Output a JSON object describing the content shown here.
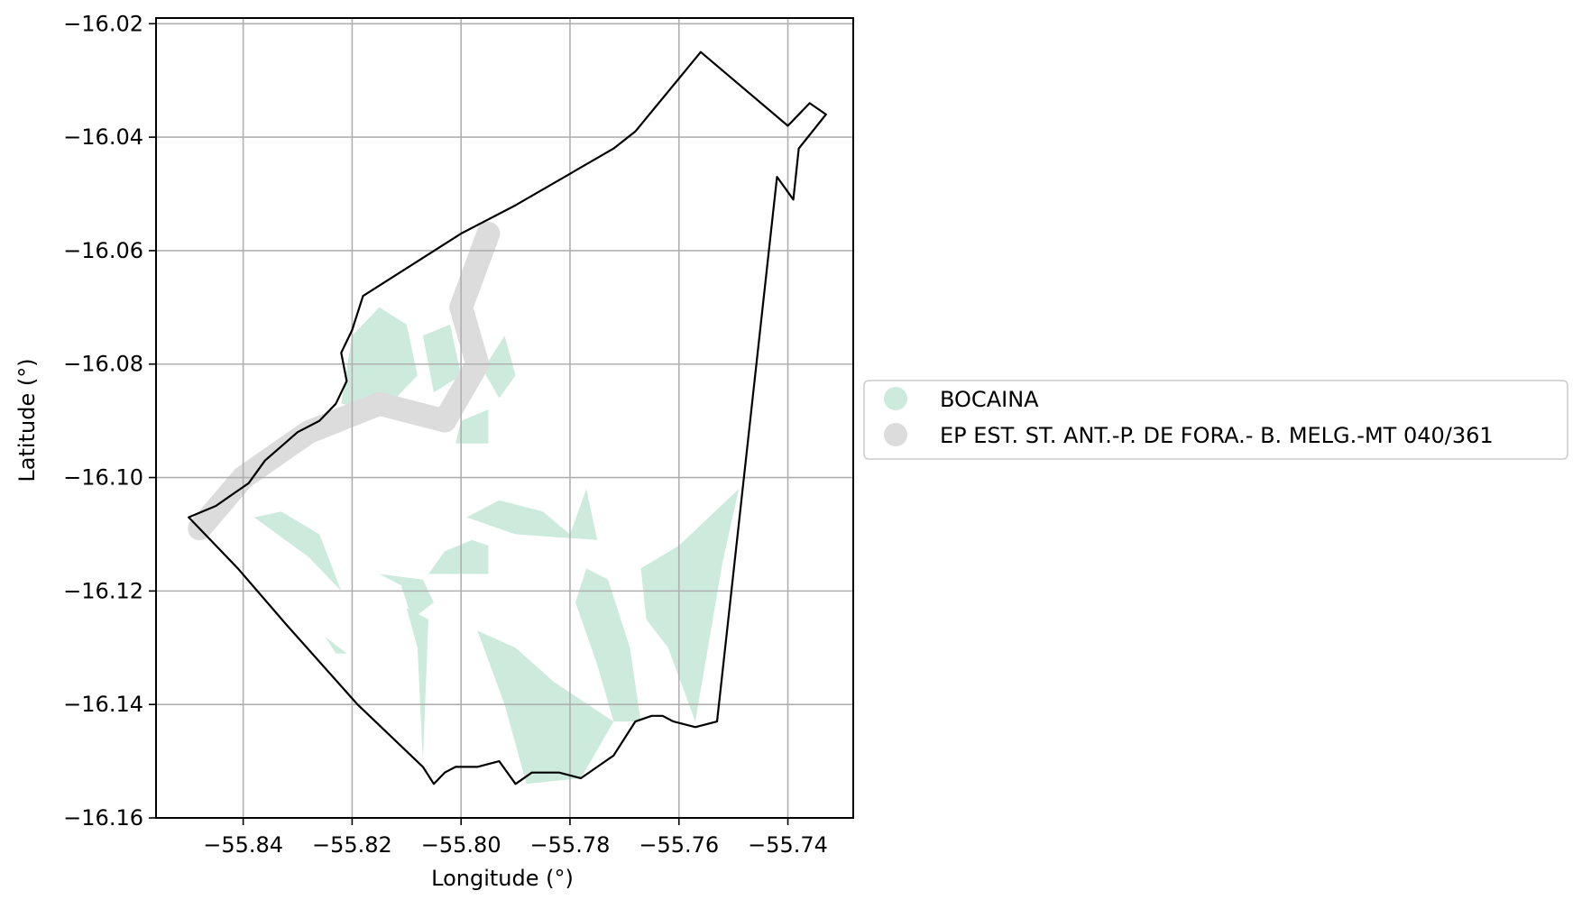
{
  "chart_data": {
    "type": "map",
    "xlabel": "Longitude (°)",
    "ylabel": "Latitude (°)",
    "xlim": [
      -55.856,
      -55.728
    ],
    "ylim": [
      -16.16,
      -16.019
    ],
    "grid": true,
    "legend_placement": "right",
    "x_ticks": [
      {
        "value": -55.84,
        "label": "−55.84"
      },
      {
        "value": -55.82,
        "label": "−55.82"
      },
      {
        "value": -55.8,
        "label": "−55.80"
      },
      {
        "value": -55.78,
        "label": "−55.78"
      },
      {
        "value": -55.76,
        "label": "−55.76"
      },
      {
        "value": -55.74,
        "label": "−55.74"
      }
    ],
    "y_ticks": [
      {
        "value": -16.02,
        "label": "−16.02"
      },
      {
        "value": -16.04,
        "label": "−16.04"
      },
      {
        "value": -16.06,
        "label": "−16.06"
      },
      {
        "value": -16.08,
        "label": "−16.08"
      },
      {
        "value": -16.1,
        "label": "−16.10"
      },
      {
        "value": -16.12,
        "label": "−16.12"
      },
      {
        "value": -16.14,
        "label": "−16.14"
      },
      {
        "value": -16.16,
        "label": "−16.16"
      }
    ],
    "series": [
      {
        "name": "BOCAINA",
        "color": "#cdebdd"
      },
      {
        "name": "EP EST. ST. ANT.-P. DE FORA.- B. MELG.-MT 040/361",
        "color": "#dcdcdc"
      }
    ],
    "boundary": [
      [
        -55.85,
        -16.107
      ],
      [
        -55.845,
        -16.105
      ],
      [
        -55.842,
        -16.103
      ],
      [
        -55.839,
        -16.101
      ],
      [
        -55.836,
        -16.097
      ],
      [
        -55.83,
        -16.092
      ],
      [
        -55.826,
        -16.09
      ],
      [
        -55.823,
        -16.087
      ],
      [
        -55.821,
        -16.083
      ],
      [
        -55.822,
        -16.078
      ],
      [
        -55.82,
        -16.074
      ],
      [
        -55.818,
        -16.068
      ],
      [
        -55.8,
        -16.057
      ],
      [
        -55.79,
        -16.052
      ],
      [
        -55.772,
        -16.042
      ],
      [
        -55.768,
        -16.039
      ],
      [
        -55.756,
        -16.025
      ],
      [
        -55.74,
        -16.038
      ],
      [
        -55.736,
        -16.034
      ],
      [
        -55.733,
        -16.036
      ],
      [
        -55.738,
        -16.042
      ],
      [
        -55.739,
        -16.051
      ],
      [
        -55.742,
        -16.047
      ],
      [
        -55.753,
        -16.143
      ],
      [
        -55.757,
        -16.144
      ],
      [
        -55.761,
        -16.143
      ],
      [
        -55.763,
        -16.142
      ],
      [
        -55.765,
        -16.142
      ],
      [
        -55.768,
        -16.143
      ],
      [
        -55.77,
        -16.146
      ],
      [
        -55.772,
        -16.149
      ],
      [
        -55.775,
        -16.151
      ],
      [
        -55.778,
        -16.153
      ],
      [
        -55.782,
        -16.152
      ],
      [
        -55.787,
        -16.152
      ],
      [
        -55.79,
        -16.154
      ],
      [
        -55.793,
        -16.15
      ],
      [
        -55.797,
        -16.151
      ],
      [
        -55.801,
        -16.151
      ],
      [
        -55.803,
        -16.152
      ],
      [
        -55.805,
        -16.154
      ],
      [
        -55.807,
        -16.151
      ],
      [
        -55.819,
        -16.14
      ],
      [
        -55.832,
        -16.126
      ],
      [
        -55.841,
        -16.116
      ],
      [
        -55.845,
        -16.112
      ],
      [
        -55.85,
        -16.107
      ]
    ],
    "highway_corridor": [
      [
        -55.848,
        -16.109
      ],
      [
        -55.84,
        -16.1
      ],
      [
        -55.828,
        -16.092
      ],
      [
        -55.815,
        -16.087
      ],
      [
        -55.803,
        -16.09
      ],
      [
        -55.797,
        -16.08
      ],
      [
        -55.8,
        -16.07
      ],
      [
        -55.795,
        -16.057
      ]
    ],
    "bocaina_areas": [
      [
        [
          -55.822,
          -16.087
        ],
        [
          -55.82,
          -16.075
        ],
        [
          -55.815,
          -16.07
        ],
        [
          -55.81,
          -16.073
        ],
        [
          -55.808,
          -16.082
        ],
        [
          -55.814,
          -16.088
        ]
      ],
      [
        [
          -55.807,
          -16.075
        ],
        [
          -55.802,
          -16.073
        ],
        [
          -55.8,
          -16.082
        ],
        [
          -55.805,
          -16.085
        ]
      ],
      [
        [
          -55.796,
          -16.081
        ],
        [
          -55.792,
          -16.075
        ],
        [
          -55.79,
          -16.082
        ],
        [
          -55.793,
          -16.086
        ]
      ],
      [
        [
          -55.8,
          -16.09
        ],
        [
          -55.795,
          -16.088
        ],
        [
          -55.795,
          -16.094
        ],
        [
          -55.801,
          -16.094
        ]
      ],
      [
        [
          -55.799,
          -16.107
        ],
        [
          -55.793,
          -16.104
        ],
        [
          -55.785,
          -16.106
        ],
        [
          -55.78,
          -16.11
        ],
        [
          -55.777,
          -16.102
        ],
        [
          -55.775,
          -16.111
        ],
        [
          -55.79,
          -16.11
        ]
      ],
      [
        [
          -55.803,
          -16.113
        ],
        [
          -55.798,
          -16.111
        ],
        [
          -55.795,
          -16.112
        ],
        [
          -55.795,
          -16.117
        ],
        [
          -55.806,
          -16.117
        ]
      ],
      [
        [
          -55.838,
          -16.107
        ],
        [
          -55.828,
          -16.114
        ],
        [
          -55.822,
          -16.12
        ],
        [
          -55.826,
          -16.11
        ],
        [
          -55.833,
          -16.106
        ]
      ],
      [
        [
          -55.815,
          -16.117
        ],
        [
          -55.811,
          -16.119
        ],
        [
          -55.809,
          -16.125
        ],
        [
          -55.805,
          -16.122
        ],
        [
          -55.807,
          -16.118
        ]
      ],
      [
        [
          -55.81,
          -16.123
        ],
        [
          -55.808,
          -16.13
        ],
        [
          -55.807,
          -16.15
        ],
        [
          -55.806,
          -16.125
        ]
      ],
      [
        [
          -55.797,
          -16.127
        ],
        [
          -55.792,
          -16.14
        ],
        [
          -55.788,
          -16.154
        ],
        [
          -55.778,
          -16.153
        ],
        [
          -55.772,
          -16.143
        ],
        [
          -55.783,
          -16.136
        ],
        [
          -55.79,
          -16.13
        ]
      ],
      [
        [
          -55.777,
          -16.116
        ],
        [
          -55.773,
          -16.118
        ],
        [
          -55.769,
          -16.13
        ],
        [
          -55.767,
          -16.143
        ],
        [
          -55.772,
          -16.143
        ],
        [
          -55.775,
          -16.133
        ],
        [
          -55.779,
          -16.122
        ]
      ],
      [
        [
          -55.767,
          -16.116
        ],
        [
          -55.76,
          -16.112
        ],
        [
          -55.749,
          -16.102
        ],
        [
          -55.752,
          -16.115
        ],
        [
          -55.757,
          -16.143
        ],
        [
          -55.762,
          -16.13
        ],
        [
          -55.766,
          -16.125
        ]
      ],
      [
        [
          -55.825,
          -16.128
        ],
        [
          -55.821,
          -16.131
        ],
        [
          -55.823,
          -16.131
        ]
      ]
    ]
  },
  "legend": {
    "items": [
      {
        "label": "BOCAINA",
        "color": "#cdebdd"
      },
      {
        "label": "EP EST. ST. ANT.-P. DE FORA.- B. MELG.-MT 040/361",
        "color": "#dcdcdc"
      }
    ]
  }
}
